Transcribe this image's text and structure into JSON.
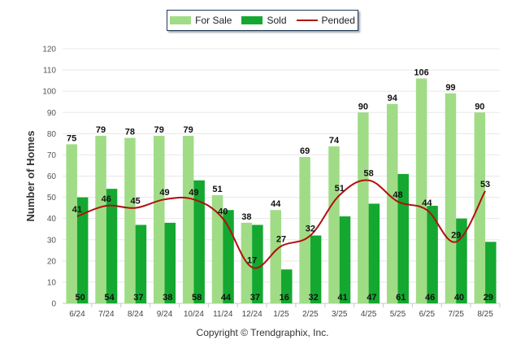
{
  "chart_data": {
    "type": "bar",
    "ylabel": "Number of Homes",
    "ylim": [
      0,
      120
    ],
    "yticks": [
      0,
      10,
      20,
      30,
      40,
      50,
      60,
      70,
      80,
      90,
      100,
      110,
      120
    ],
    "categories": [
      "6/24",
      "7/24",
      "8/24",
      "9/24",
      "10/24",
      "11/24",
      "12/24",
      "1/25",
      "2/25",
      "3/25",
      "4/25",
      "5/25",
      "6/25",
      "7/25",
      "8/25"
    ],
    "series": [
      {
        "name": "For Sale",
        "kind": "bar",
        "color": "#a0dc86",
        "values": [
          75,
          79,
          78,
          79,
          79,
          51,
          38,
          44,
          69,
          74,
          90,
          94,
          106,
          99,
          90
        ]
      },
      {
        "name": "Sold",
        "kind": "bar",
        "color": "#14a830",
        "values": [
          50,
          54,
          37,
          38,
          58,
          44,
          37,
          16,
          32,
          41,
          47,
          61,
          46,
          40,
          29
        ]
      },
      {
        "name": "Pended",
        "kind": "line",
        "color": "#b01010",
        "values": [
          41,
          46,
          45,
          49,
          49,
          40,
          17,
          27,
          32,
          51,
          58,
          48,
          44,
          29,
          53
        ]
      }
    ],
    "grid": true,
    "legend_position": "top-center"
  },
  "footer": {
    "copyright": "Copyright © Trendgraphix, Inc."
  }
}
